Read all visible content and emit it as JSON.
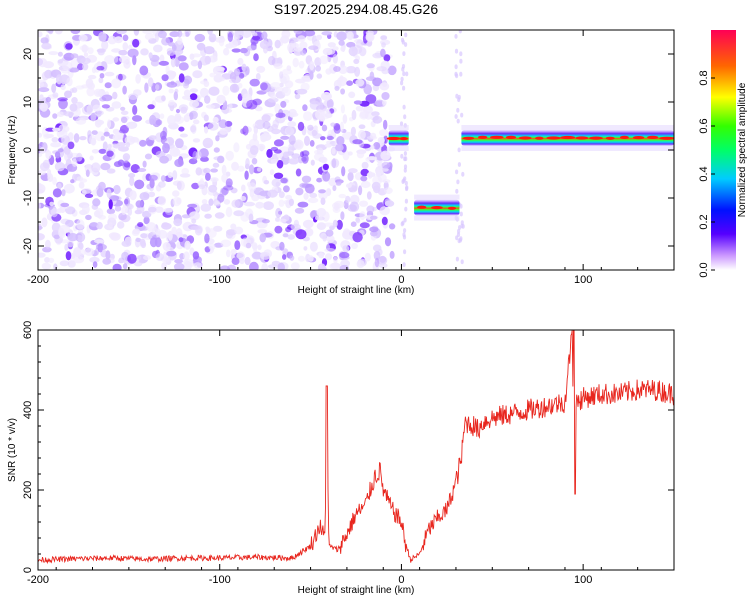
{
  "title": "S197.2025.294.08.45.G26",
  "chart_data": [
    {
      "type": "heatmap",
      "xlabel": "Height of straight line (km)",
      "ylabel": "Frequency (Hz)",
      "xlim": [
        -200,
        150
      ],
      "ylim": [
        -25,
        25
      ],
      "x_ticks": [
        "-200",
        "-100",
        "0",
        "100"
      ],
      "y_ticks": [
        "-20",
        "-10",
        "0",
        "10",
        "20"
      ],
      "noise_region_km": [
        -200,
        -5
      ],
      "segments": [
        {
          "x_start": -7,
          "x_end": 4,
          "freq_hz": 2.5,
          "peak_amplitude": 0.85
        },
        {
          "x_start": 7,
          "x_end": 32,
          "freq_hz": -12,
          "peak_amplitude": 0.95
        },
        {
          "x_start": 33,
          "x_end": 150,
          "freq_hz": 2.5,
          "peak_amplitude": 1.0
        }
      ],
      "colorbar": {
        "label": "Normalized spectral amplitude",
        "range": [
          0.0,
          1.0
        ],
        "ticks": [
          "0.0",
          "0.2",
          "0.4",
          "0.6",
          "0.8"
        ]
      }
    },
    {
      "type": "line",
      "xlabel": "Height of straight line (km)",
      "ylabel": "SNR (10 * v/v)",
      "xlim": [
        -200,
        150
      ],
      "ylim": [
        0,
        600
      ],
      "x_ticks": [
        "-200",
        "-100",
        "0",
        "100"
      ],
      "y_ticks": [
        "0",
        "200",
        "400",
        "600"
      ],
      "line_color": "#e8261e",
      "series": [
        {
          "name": "SNR",
          "x": [
            -200,
            -180,
            -160,
            -140,
            -120,
            -100,
            -80,
            -60,
            -50,
            -45,
            -42,
            -41,
            -40,
            -35,
            -30,
            -25,
            -20,
            -15,
            -12,
            -10,
            -5,
            0,
            2,
            5,
            10,
            15,
            20,
            25,
            30,
            33,
            35,
            40,
            42,
            45,
            50,
            60,
            70,
            80,
            90,
            94,
            95,
            96,
            100,
            110,
            120,
            130,
            140,
            150
          ],
          "y": [
            25,
            28,
            30,
            27,
            30,
            30,
            32,
            30,
            60,
            110,
            80,
            450,
            60,
            50,
            90,
            140,
            160,
            230,
            250,
            200,
            150,
            120,
            70,
            25,
            40,
            100,
            130,
            150,
            220,
            280,
            370,
            360,
            350,
            370,
            380,
            390,
            400,
            410,
            420,
            600,
            200,
            420,
            430,
            440,
            440,
            450,
            450,
            440
          ]
        }
      ]
    }
  ]
}
